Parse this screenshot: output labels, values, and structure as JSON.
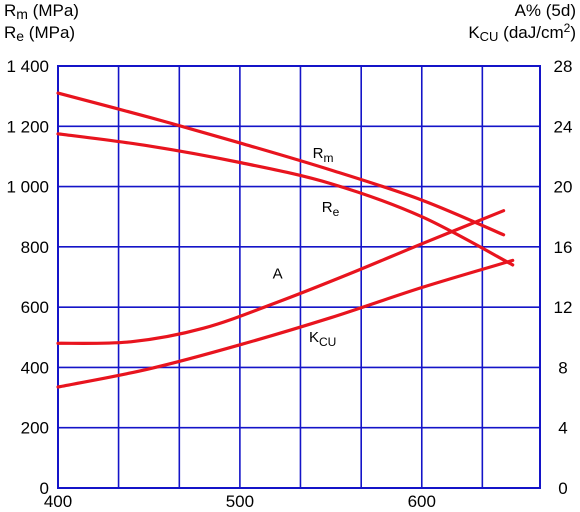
{
  "chart_data": {
    "type": "line",
    "left_axis_labels": [
      {
        "main": "R",
        "sub": "m",
        "unit": " (MPa)"
      },
      {
        "main": "R",
        "sub": "e",
        "unit": " (MPa)"
      }
    ],
    "right_axis_labels": [
      {
        "main": "A% (5d)",
        "sub": "",
        "unit": "",
        "sup": ""
      },
      {
        "main": "K",
        "sub": "CU",
        "unit": " (daJ/cm",
        "sup": "2",
        "tail": ")"
      }
    ],
    "xlim": [
      400,
      665
    ],
    "ylim_left": [
      0,
      1400
    ],
    "ylim_right": [
      0,
      28
    ],
    "x_ticks": [
      400,
      500,
      600
    ],
    "x_tick_labels": [
      "400",
      "500",
      "600"
    ],
    "x_grid": [
      400,
      433.3,
      466.7,
      500,
      533.3,
      566.7,
      600,
      633.3,
      665
    ],
    "y_ticks_left": [
      0,
      200,
      400,
      600,
      800,
      1000,
      1200,
      1400
    ],
    "y_tick_labels_left": [
      "0",
      "200",
      "400",
      "600",
      "800",
      "1 000",
      "1 200",
      "1 400"
    ],
    "y_ticks_right": [
      0,
      4,
      8,
      12,
      16,
      20,
      24,
      28
    ],
    "y_tick_labels_right": [
      "0",
      "4",
      "8",
      "12",
      "16",
      "20",
      "24",
      "28"
    ],
    "grid": true,
    "colors": {
      "grid": "#1414c8",
      "series": "#e8141e"
    },
    "series": [
      {
        "name": "R",
        "sub": "m",
        "axis": "left",
        "label_at": [
          540,
          1095
        ],
        "x": [
          400,
          450,
          500,
          550,
          600,
          645
        ],
        "y": [
          1310,
          1230,
          1145,
          1055,
          955,
          840
        ]
      },
      {
        "name": "R",
        "sub": "e",
        "axis": "left",
        "label_at": [
          545,
          915
        ],
        "x": [
          400,
          450,
          500,
          550,
          600,
          650
        ],
        "y": [
          1175,
          1135,
          1080,
          1010,
          900,
          740
        ]
      },
      {
        "name": "A",
        "sub": "",
        "axis": "right",
        "label_at": [
          518,
          13.9
        ],
        "x": [
          400,
          440,
          480,
          520,
          560,
          600,
          645
        ],
        "y": [
          9.6,
          9.7,
          10.6,
          12.3,
          14.2,
          16.2,
          18.4
        ]
      },
      {
        "name": "K",
        "sub": "CU",
        "axis": "right",
        "label_at": [
          538,
          9.7
        ],
        "x": [
          400,
          450,
          500,
          550,
          600,
          650
        ],
        "y": [
          6.7,
          7.9,
          9.5,
          11.3,
          13.3,
          15.1
        ]
      }
    ]
  }
}
